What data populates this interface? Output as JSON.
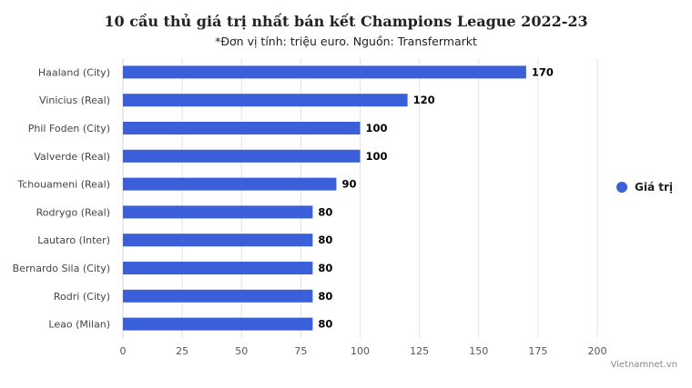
{
  "chart_data": {
    "type": "bar",
    "orientation": "horizontal",
    "title": "10 cầu thủ giá trị nhất bán kết Champions League 2022-23",
    "subtitle": "*Đơn vị tính: triệu euro. Nguồn: Transfermarkt",
    "categories": [
      "Haaland (City)",
      "Vinicius (Real)",
      "Phil Foden (City)",
      "Valverde (Real)",
      "Tchouameni (Real)",
      "Rodrygo (Real)",
      "Lautaro (Inter)",
      "Bernardo Sila (City)",
      "Rodri (City)",
      "Leao (Milan)"
    ],
    "series": [
      {
        "name": "Giá trị",
        "values": [
          170,
          120,
          100,
          100,
          90,
          80,
          80,
          80,
          80,
          80
        ],
        "color": "#3a5fd9"
      }
    ],
    "xlim": [
      0,
      200
    ],
    "xticks": [
      0,
      25,
      50,
      75,
      100,
      125,
      150,
      175,
      200
    ],
    "xlabel": "",
    "ylabel": "",
    "grid": true,
    "legend_position": "right",
    "data_labels": true
  },
  "credit": "Vietnamnet.vn"
}
